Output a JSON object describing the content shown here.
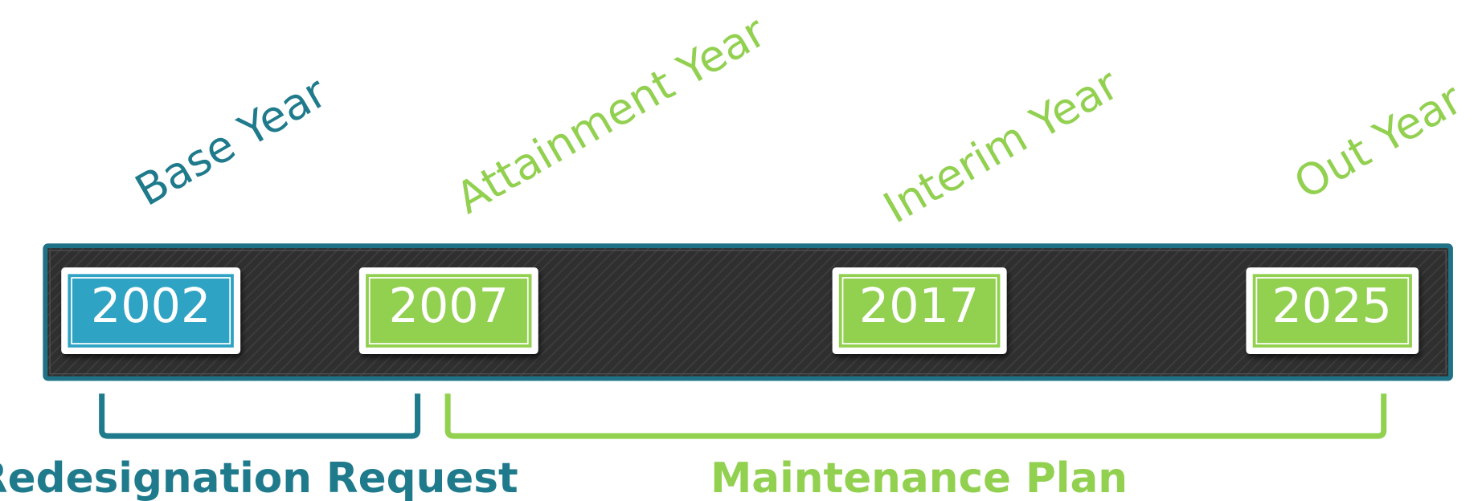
{
  "timeline": {
    "milestones": [
      {
        "label": "Base Year",
        "year": "2002"
      },
      {
        "label": "Attainment Year",
        "year": "2007"
      },
      {
        "label": "Interim Year",
        "year": "2017"
      },
      {
        "label": "Out Year",
        "year": "2025"
      }
    ],
    "phases": [
      {
        "label": "Redesignation Request"
      },
      {
        "label": "Maintenance Plan"
      }
    ]
  }
}
